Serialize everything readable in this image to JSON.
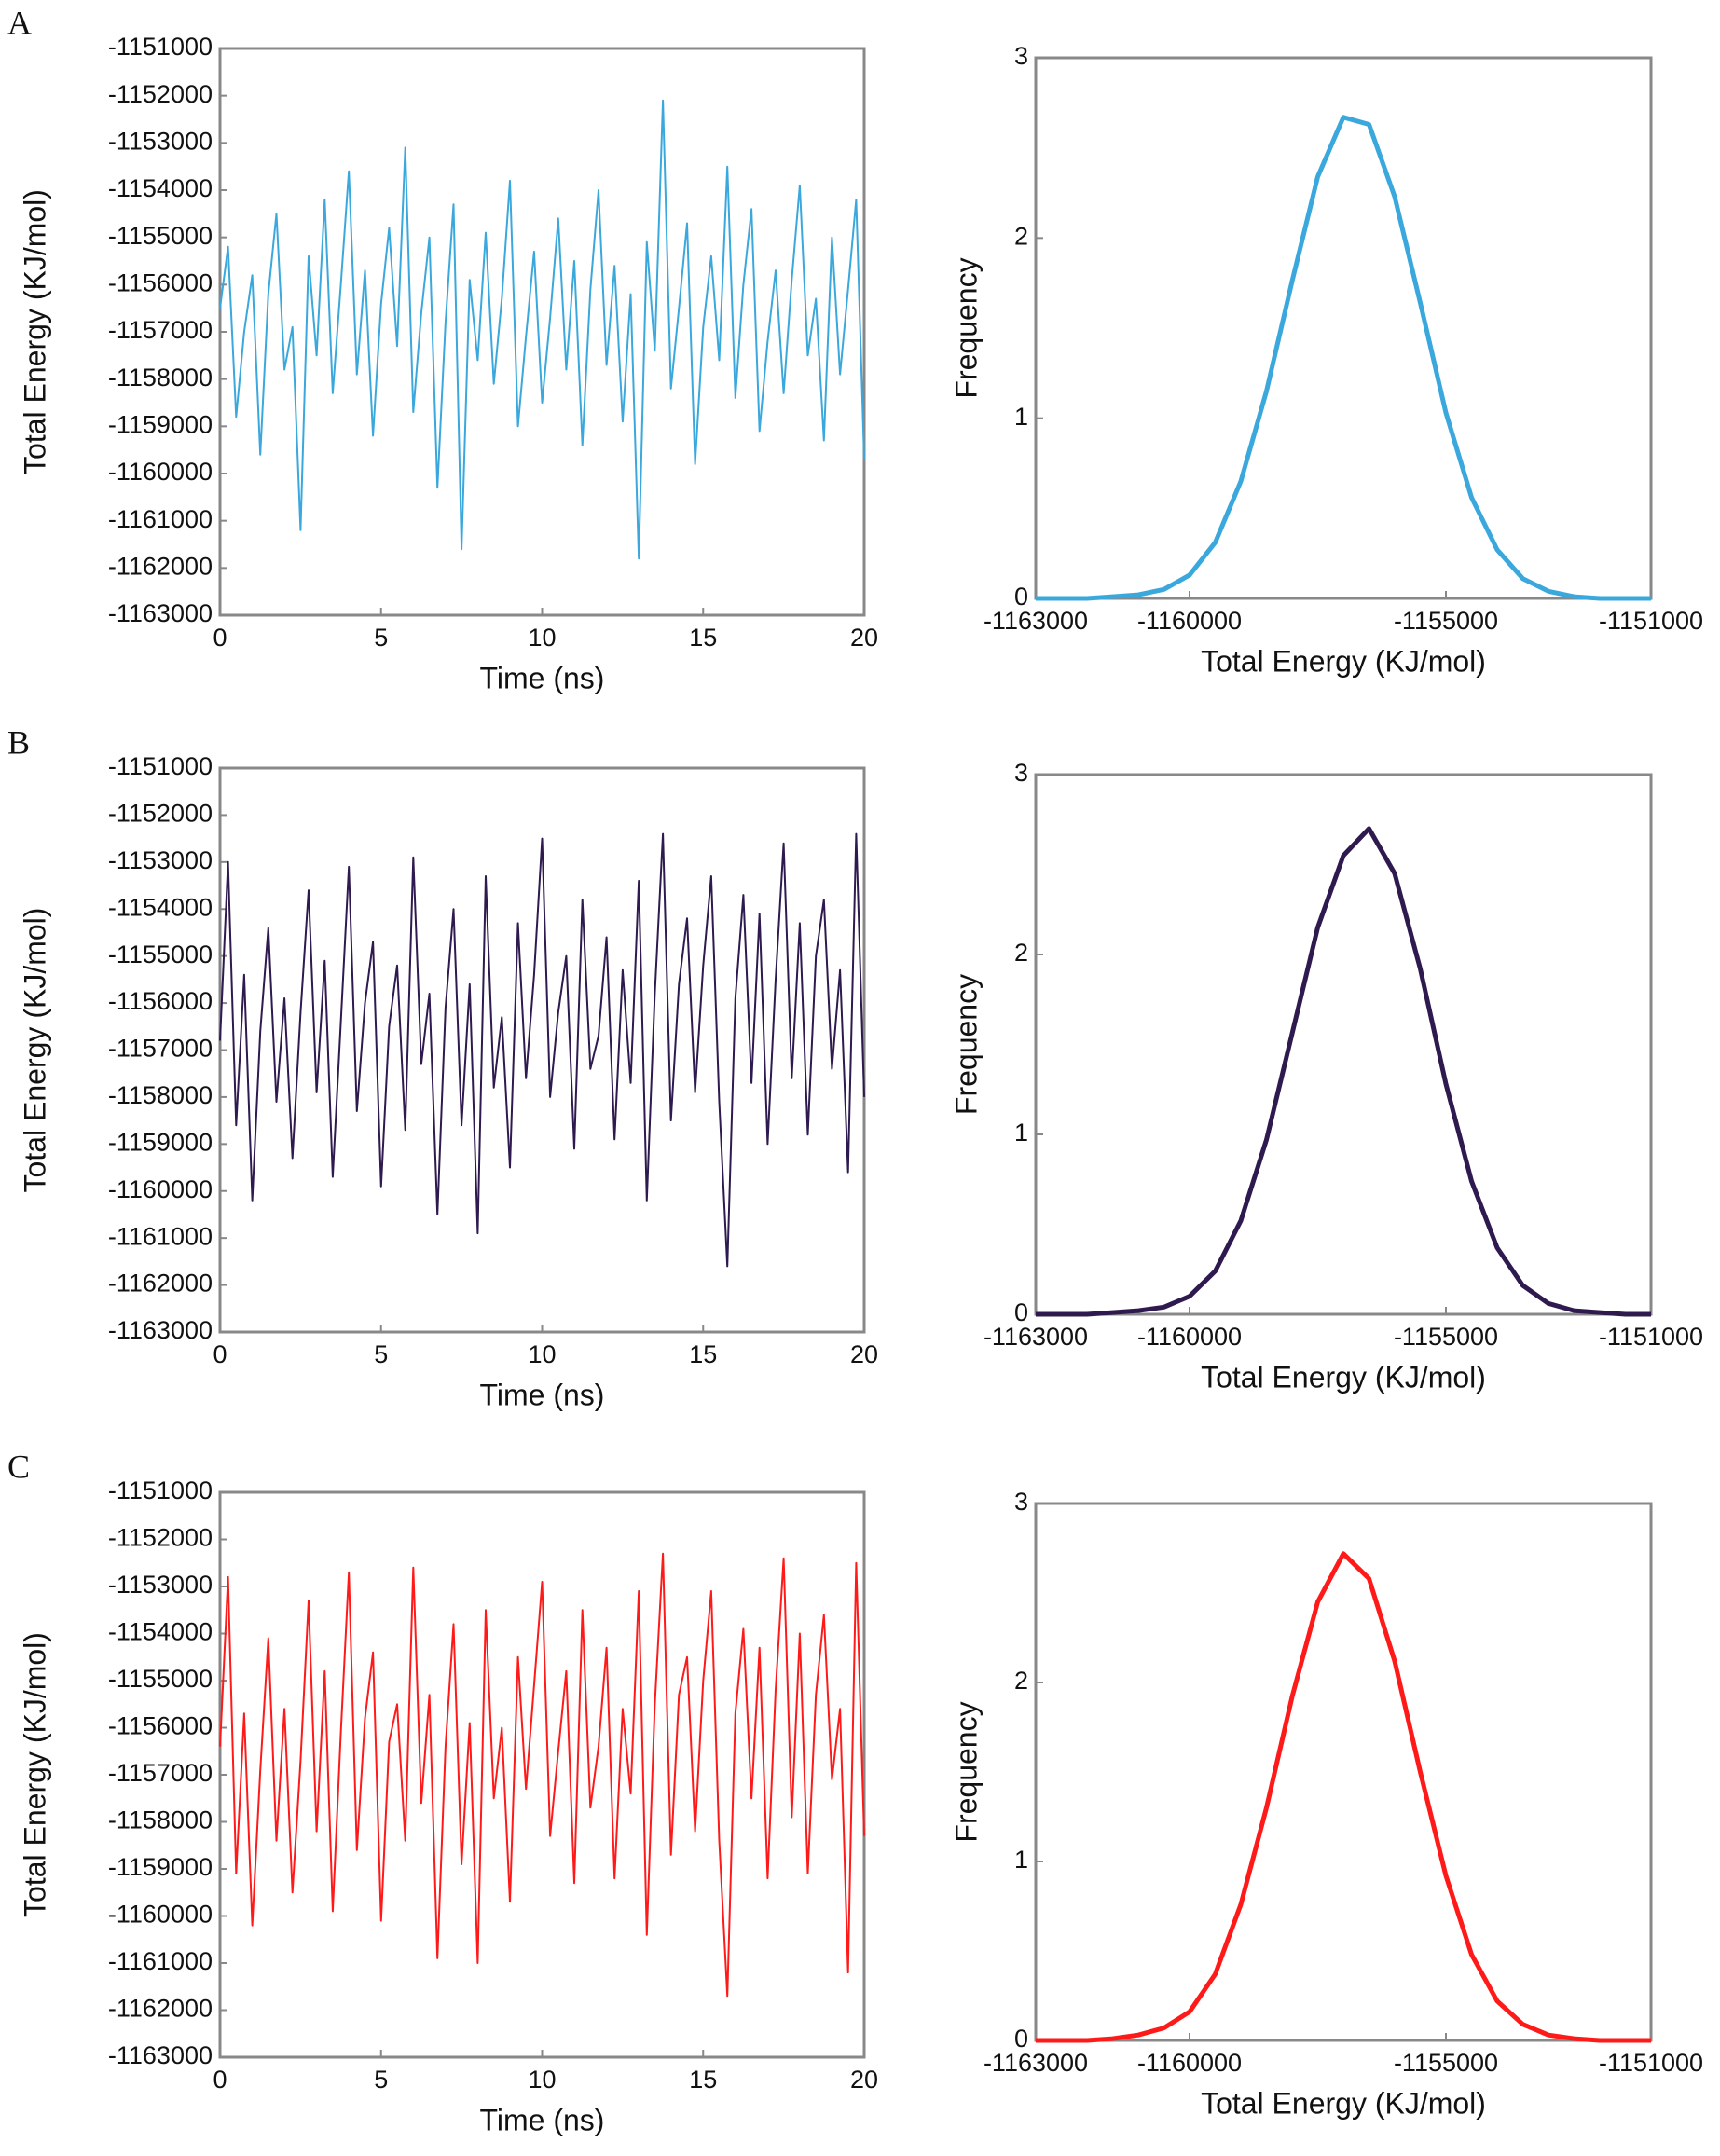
{
  "chart_data": [
    {
      "type": "line",
      "label": "A",
      "xlabel": "Time (ns)",
      "ylabel": "Total Energy (KJ/mol)",
      "color": "#3aa8dc",
      "xlim": [
        0,
        20
      ],
      "xticks": [
        0,
        5,
        10,
        15,
        20
      ],
      "ylim": [
        -1163000,
        -1151000
      ],
      "yticks": [
        -1163000,
        -1162000,
        -1161000,
        -1160000,
        -1159000,
        -1158000,
        -1157000,
        -1156000,
        -1155000,
        -1154000,
        -1153000,
        -1152000,
        -1151000
      ],
      "x": [
        0,
        0.25,
        0.5,
        0.75,
        1,
        1.25,
        1.5,
        1.75,
        2,
        2.25,
        2.5,
        2.75,
        3,
        3.25,
        3.5,
        3.75,
        4,
        4.25,
        4.5,
        4.75,
        5,
        5.25,
        5.5,
        5.75,
        6,
        6.25,
        6.5,
        6.75,
        7,
        7.25,
        7.5,
        7.75,
        8,
        8.25,
        8.5,
        8.75,
        9,
        9.25,
        9.5,
        9.75,
        10,
        10.25,
        10.5,
        10.75,
        11,
        11.25,
        11.5,
        11.75,
        12,
        12.25,
        12.5,
        12.75,
        13,
        13.25,
        13.5,
        13.75,
        14,
        14.25,
        14.5,
        14.75,
        15,
        15.25,
        15.5,
        15.75,
        16,
        16.25,
        16.5,
        16.75,
        17,
        17.25,
        17.5,
        17.75,
        18,
        18.25,
        18.5,
        18.75,
        19,
        19.25,
        19.5,
        19.75,
        20
      ],
      "values": [
        -1156500,
        -1155200,
        -1158800,
        -1157000,
        -1155800,
        -1159600,
        -1156200,
        -1154500,
        -1157800,
        -1156900,
        -1161200,
        -1155400,
        -1157500,
        -1154200,
        -1158300,
        -1156000,
        -1153600,
        -1157900,
        -1155700,
        -1159200,
        -1156400,
        -1154800,
        -1157300,
        -1153100,
        -1158700,
        -1156600,
        -1155000,
        -1160300,
        -1156800,
        -1154300,
        -1161600,
        -1155900,
        -1157600,
        -1154900,
        -1158100,
        -1156300,
        -1153800,
        -1159000,
        -1157100,
        -1155300,
        -1158500,
        -1156700,
        -1154600,
        -1157800,
        -1155500,
        -1159400,
        -1156100,
        -1154000,
        -1157700,
        -1155600,
        -1158900,
        -1156200,
        -1161800,
        -1155100,
        -1157400,
        -1152100,
        -1158200,
        -1156500,
        -1154700,
        -1159800,
        -1156900,
        -1155400,
        -1157600,
        -1153500,
        -1158400,
        -1156000,
        -1154400,
        -1159100,
        -1157200,
        -1155700,
        -1158300,
        -1155900,
        -1153900,
        -1157500,
        -1156300,
        -1159300,
        -1155000,
        -1157900,
        -1156100,
        -1154200,
        -1159700
      ]
    },
    {
      "type": "line",
      "xlabel": "Total Energy (KJ/mol)",
      "ylabel": "Frequency",
      "color": "#3aa8dc",
      "xlim": [
        -1163000,
        -1151000
      ],
      "xticks": [
        -1163000,
        -1160000,
        -1155000,
        -1151000
      ],
      "ylim": [
        0,
        3
      ],
      "yticks": [
        0,
        1,
        2,
        3
      ],
      "x": [
        -1163000,
        -1162500,
        -1162000,
        -1161500,
        -1161000,
        -1160500,
        -1160000,
        -1159500,
        -1159000,
        -1158500,
        -1158000,
        -1157500,
        -1157000,
        -1156500,
        -1156000,
        -1155500,
        -1155000,
        -1154500,
        -1154000,
        -1153500,
        -1153000,
        -1152500,
        -1152000,
        -1151500,
        -1151000
      ],
      "values": [
        0,
        0,
        0,
        0.01,
        0.02,
        0.05,
        0.13,
        0.31,
        0.65,
        1.15,
        1.76,
        2.34,
        2.67,
        2.63,
        2.23,
        1.64,
        1.03,
        0.56,
        0.27,
        0.11,
        0.04,
        0.01,
        0,
        0,
        0
      ]
    },
    {
      "type": "line",
      "label": "B",
      "xlabel": "Time (ns)",
      "ylabel": "Total Energy (KJ/mol)",
      "color": "#2e1a4e",
      "xlim": [
        0,
        20
      ],
      "xticks": [
        0,
        5,
        10,
        15,
        20
      ],
      "ylim": [
        -1163000,
        -1151000
      ],
      "yticks": [
        -1163000,
        -1162000,
        -1161000,
        -1160000,
        -1159000,
        -1158000,
        -1157000,
        -1156000,
        -1155000,
        -1154000,
        -1153000,
        -1152000,
        -1151000
      ],
      "x": [
        0,
        0.25,
        0.5,
        0.75,
        1,
        1.25,
        1.5,
        1.75,
        2,
        2.25,
        2.5,
        2.75,
        3,
        3.25,
        3.5,
        3.75,
        4,
        4.25,
        4.5,
        4.75,
        5,
        5.25,
        5.5,
        5.75,
        6,
        6.25,
        6.5,
        6.75,
        7,
        7.25,
        7.5,
        7.75,
        8,
        8.25,
        8.5,
        8.75,
        9,
        9.25,
        9.5,
        9.75,
        10,
        10.25,
        10.5,
        10.75,
        11,
        11.25,
        11.5,
        11.75,
        12,
        12.25,
        12.5,
        12.75,
        13,
        13.25,
        13.5,
        13.75,
        14,
        14.25,
        14.5,
        14.75,
        15,
        15.25,
        15.5,
        15.75,
        16,
        16.25,
        16.5,
        16.75,
        17,
        17.25,
        17.5,
        17.75,
        18,
        18.25,
        18.5,
        18.75,
        19,
        19.25,
        19.5,
        19.75,
        20
      ],
      "values": [
        -1156800,
        -1153000,
        -1158600,
        -1155400,
        -1160200,
        -1156600,
        -1154400,
        -1158100,
        -1155900,
        -1159300,
        -1156200,
        -1153600,
        -1157900,
        -1155100,
        -1159700,
        -1156400,
        -1153100,
        -1158300,
        -1156000,
        -1154700,
        -1159900,
        -1156500,
        -1155200,
        -1158700,
        -1152900,
        -1157300,
        -1155800,
        -1160500,
        -1156100,
        -1154000,
        -1158600,
        -1155600,
        -1160900,
        -1153300,
        -1157800,
        -1156300,
        -1159500,
        -1154300,
        -1157600,
        -1155400,
        -1152500,
        -1158000,
        -1156200,
        -1155000,
        -1159100,
        -1153800,
        -1157400,
        -1156700,
        -1154600,
        -1158900,
        -1155300,
        -1157700,
        -1153400,
        -1160200,
        -1155800,
        -1152400,
        -1158500,
        -1155600,
        -1154200,
        -1157900,
        -1155200,
        -1153300,
        -1158100,
        -1161600,
        -1155900,
        -1153700,
        -1157700,
        -1154100,
        -1159000,
        -1155500,
        -1152600,
        -1157600,
        -1154300,
        -1158800,
        -1155000,
        -1153800,
        -1157400,
        -1155300,
        -1159600,
        -1152400,
        -1158000
      ]
    },
    {
      "type": "line",
      "xlabel": "Total Energy (KJ/mol)",
      "ylabel": "Frequency",
      "color": "#2e1a4e",
      "xlim": [
        -1163000,
        -1151000
      ],
      "xticks": [
        -1163000,
        -1160000,
        -1155000,
        -1151000
      ],
      "ylim": [
        0,
        3
      ],
      "yticks": [
        0,
        1,
        2,
        3
      ],
      "x": [
        -1163000,
        -1162500,
        -1162000,
        -1161500,
        -1161000,
        -1160500,
        -1160000,
        -1159500,
        -1159000,
        -1158500,
        -1158000,
        -1157500,
        -1157000,
        -1156500,
        -1156000,
        -1155500,
        -1155000,
        -1154500,
        -1154000,
        -1153500,
        -1153000,
        -1152500,
        -1152000,
        -1151500,
        -1151000
      ],
      "values": [
        0,
        0,
        0,
        0.01,
        0.02,
        0.04,
        0.1,
        0.24,
        0.52,
        0.97,
        1.56,
        2.15,
        2.55,
        2.7,
        2.45,
        1.92,
        1.28,
        0.74,
        0.37,
        0.16,
        0.06,
        0.02,
        0.01,
        0,
        0
      ]
    },
    {
      "type": "line",
      "label": "C",
      "xlabel": "Time (ns)",
      "ylabel": "Total Energy (KJ/mol)",
      "color": "#ff1a1a",
      "xlim": [
        0,
        20
      ],
      "xticks": [
        0,
        5,
        10,
        15,
        20
      ],
      "ylim": [
        -1163000,
        -1151000
      ],
      "yticks": [
        -1163000,
        -1162000,
        -1161000,
        -1160000,
        -1159000,
        -1158000,
        -1157000,
        -1156000,
        -1155000,
        -1154000,
        -1153000,
        -1152000,
        -1151000
      ],
      "x": [
        0,
        0.25,
        0.5,
        0.75,
        1,
        1.25,
        1.5,
        1.75,
        2,
        2.25,
        2.5,
        2.75,
        3,
        3.25,
        3.5,
        3.75,
        4,
        4.25,
        4.5,
        4.75,
        5,
        5.25,
        5.5,
        5.75,
        6,
        6.25,
        6.5,
        6.75,
        7,
        7.25,
        7.5,
        7.75,
        8,
        8.25,
        8.5,
        8.75,
        9,
        9.25,
        9.5,
        9.75,
        10,
        10.25,
        10.5,
        10.75,
        11,
        11.25,
        11.5,
        11.75,
        12,
        12.25,
        12.5,
        12.75,
        13,
        13.25,
        13.5,
        13.75,
        14,
        14.25,
        14.5,
        14.75,
        15,
        15.25,
        15.5,
        15.75,
        16,
        16.25,
        16.5,
        16.75,
        17,
        17.25,
        17.5,
        17.75,
        18,
        18.25,
        18.5,
        18.75,
        19,
        19.25,
        19.5,
        19.75,
        20
      ],
      "values": [
        -1156400,
        -1152800,
        -1159100,
        -1155700,
        -1160200,
        -1156900,
        -1154100,
        -1158400,
        -1155600,
        -1159500,
        -1156700,
        -1153300,
        -1158200,
        -1154800,
        -1159900,
        -1156100,
        -1152700,
        -1158600,
        -1155800,
        -1154400,
        -1160100,
        -1156300,
        -1155500,
        -1158400,
        -1152600,
        -1157600,
        -1155300,
        -1160900,
        -1156400,
        -1153800,
        -1158900,
        -1155900,
        -1161000,
        -1153500,
        -1157500,
        -1156000,
        -1159700,
        -1154500,
        -1157300,
        -1155100,
        -1152900,
        -1158300,
        -1156500,
        -1154800,
        -1159300,
        -1153500,
        -1157700,
        -1156400,
        -1154300,
        -1159200,
        -1155600,
        -1157400,
        -1153100,
        -1160400,
        -1155500,
        -1152300,
        -1158700,
        -1155300,
        -1154500,
        -1158200,
        -1155000,
        -1153100,
        -1158400,
        -1161700,
        -1155700,
        -1153900,
        -1157500,
        -1154300,
        -1159200,
        -1155200,
        -1152400,
        -1157900,
        -1154000,
        -1159100,
        -1155300,
        -1153600,
        -1157100,
        -1155600,
        -1161200,
        -1152500,
        -1158300
      ]
    },
    {
      "type": "line",
      "xlabel": "Total Energy (KJ/mol)",
      "ylabel": "Frequency",
      "color": "#ff1a1a",
      "xlim": [
        -1163000,
        -1151000
      ],
      "xticks": [
        -1163000,
        -1160000,
        -1155000,
        -1151000
      ],
      "ylim": [
        0,
        3
      ],
      "yticks": [
        0,
        1,
        2,
        3
      ],
      "x": [
        -1163000,
        -1162500,
        -1162000,
        -1161500,
        -1161000,
        -1160500,
        -1160000,
        -1159500,
        -1159000,
        -1158500,
        -1158000,
        -1157500,
        -1157000,
        -1156500,
        -1156000,
        -1155500,
        -1155000,
        -1154500,
        -1154000,
        -1153500,
        -1153000,
        -1152500,
        -1152000,
        -1151500,
        -1151000
      ],
      "values": [
        0,
        0,
        0,
        0.01,
        0.03,
        0.07,
        0.16,
        0.37,
        0.76,
        1.3,
        1.92,
        2.45,
        2.72,
        2.58,
        2.12,
        1.5,
        0.92,
        0.48,
        0.22,
        0.09,
        0.03,
        0.01,
        0,
        0,
        0
      ]
    }
  ]
}
